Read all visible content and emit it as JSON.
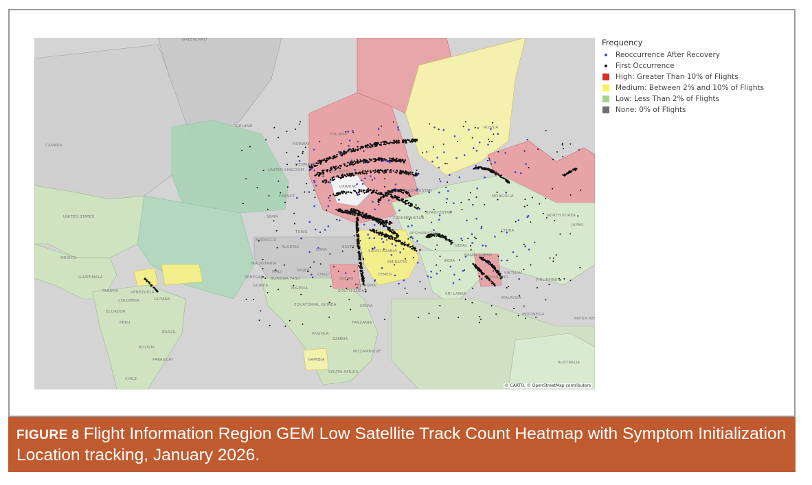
{
  "legend": {
    "title": "Frequency",
    "items": [
      {
        "label": "Reoccurrence After Recovery",
        "color": "#3c46c8",
        "shape": "dot"
      },
      {
        "label": "First Occurrence",
        "color": "#111111",
        "shape": "dot"
      },
      {
        "label": "High: Greater Than 10% of Flights",
        "color": "#d73027",
        "shape": "square"
      },
      {
        "label": "Medium: Between 2% and 10% of Flights",
        "color": "#f6f15a",
        "shape": "square"
      },
      {
        "label": "Low: Less Than 2% of Flights",
        "color": "#a4d58a",
        "shape": "square"
      },
      {
        "label": "None: 0% of Flights",
        "color": "#6e6e6e",
        "shape": "square"
      }
    ]
  },
  "map": {
    "attribution": "© CARTO, © OpenStreetMap contributors",
    "labels": [
      "GREENLAND",
      "ICELAND",
      "CANADA",
      "UNITED STATES",
      "MEXICO",
      "GUATEMALA",
      "PANAMA",
      "COLOMBIA",
      "VENEZUELA",
      "GUYANA",
      "ECUADOR",
      "PERU",
      "BRAZIL",
      "BOLIVIA",
      "PARAGUAY",
      "CHILE",
      "NORWAY",
      "FINLAND",
      "UNITED KINGDOM",
      "DENMARK",
      "FRANCE",
      "SPAIN",
      "BELARUS",
      "UKRAINE",
      "MOROCCO",
      "ALGERIA",
      "TUNIS",
      "LIBYA",
      "EGYPT",
      "MAURITANIA",
      "MALI",
      "NIGER",
      "CHAD",
      "SUDAN",
      "BURKINA FASO",
      "SENEGAL",
      "GUINEA",
      "NIGERIA",
      "EQUATORIAL GUINEA",
      "SOUTH SUDAN",
      "ETHIOPIA",
      "KENYA",
      "TANZANIA",
      "ANGOLA",
      "ZAMBIA",
      "NAMIBIA",
      "MOZAMBIQUE",
      "SOUTH AFRICA",
      "SAUDI ARABIA",
      "YEMEN",
      "EMIRATES",
      "TURKMENISTAN",
      "KYRGYZSTAN",
      "KAZAKHSTAN",
      "AFGHANISTAN",
      "NEPAL",
      "INDIA",
      "SRI LANKA",
      "RUSSIA",
      "MONGOLIA",
      "CHINA",
      "JAPAN",
      "NORTH KOREA",
      "BANGLADESH",
      "THAILAND",
      "VIETNAM",
      "PHILIPPINES",
      "MALAYSIA",
      "INDONESIA",
      "PAPUA NEW GUINEA",
      "AUSTRALIA"
    ]
  },
  "caption": {
    "figure_label": "FIGURE 8",
    "text": "Flight Information Region GEM Low Satellite Track Count Heatmap with Symptom Initialization Location tracking, January 2026."
  }
}
